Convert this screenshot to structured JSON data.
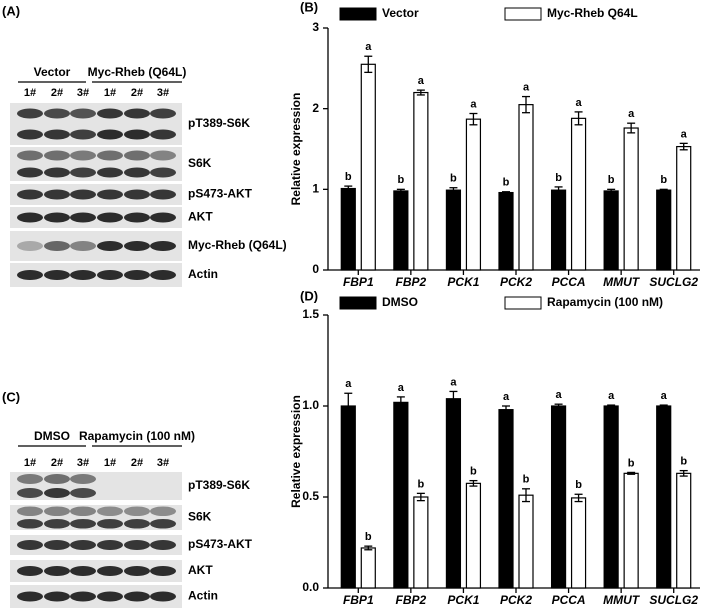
{
  "chart_data": [
    {
      "type": "bar",
      "panel_label": "(B)",
      "y_label": "Relative expression",
      "categories": [
        "FBP1",
        "FBP2",
        "PCK1",
        "PCK2",
        "PCCA",
        "MMUT",
        "SUCLG2"
      ],
      "series": [
        {
          "name": "Vector",
          "color": "#000000",
          "values": [
            1.01,
            0.98,
            0.99,
            0.96,
            0.99,
            0.98,
            0.99
          ],
          "errors": [
            0.03,
            0.02,
            0.03,
            0.01,
            0.04,
            0.02,
            0.01
          ],
          "letters": [
            "b",
            "b",
            "b",
            "b",
            "b",
            "b",
            "b"
          ]
        },
        {
          "name": "Myc-Rheb Q64L",
          "color": "#ffffff",
          "values": [
            2.55,
            2.2,
            1.87,
            2.05,
            1.88,
            1.76,
            1.53
          ],
          "errors": [
            0.1,
            0.03,
            0.07,
            0.1,
            0.08,
            0.06,
            0.04
          ],
          "letters": [
            "a",
            "a",
            "a",
            "a",
            "a",
            "a",
            "a"
          ]
        }
      ],
      "ylim": [
        0,
        3
      ],
      "yticks": [
        0,
        1,
        2,
        3
      ]
    },
    {
      "type": "bar",
      "panel_label": "(D)",
      "y_label": "Relative expression",
      "categories": [
        "FBP1",
        "FBP2",
        "PCK1",
        "PCK2",
        "PCCA",
        "MMUT",
        "SUCLG2"
      ],
      "series": [
        {
          "name": "DMSO",
          "color": "#000000",
          "values": [
            1.0,
            1.02,
            1.04,
            0.98,
            1.0,
            1.0,
            1.0
          ],
          "errors": [
            0.07,
            0.03,
            0.04,
            0.02,
            0.01,
            0.005,
            0.005
          ],
          "letters": [
            "a",
            "a",
            "a",
            "a",
            "a",
            "a",
            "a"
          ]
        },
        {
          "name": "Rapamycin (100 nM)",
          "color": "#ffffff",
          "values": [
            0.22,
            0.5,
            0.575,
            0.51,
            0.495,
            0.63,
            0.63
          ],
          "errors": [
            0.01,
            0.02,
            0.015,
            0.035,
            0.02,
            0.005,
            0.015
          ],
          "letters": [
            "b",
            "b",
            "b",
            "b",
            "b",
            "b",
            "b"
          ]
        }
      ],
      "ylim": [
        0,
        1.5
      ],
      "yticks": [
        {
          "value": 0,
          "label": "0.0"
        },
        {
          "value": 0.5,
          "label": "0.5"
        },
        {
          "value": 1,
          "label": "1.0"
        },
        {
          "value": 1.5,
          "label": "1.5"
        }
      ]
    }
  ],
  "blots": [
    {
      "panel_label": "(A)",
      "groups": [
        "Vector",
        "Myc-Rheb (Q64L)"
      ],
      "lanes": [
        "1#",
        "2#",
        "3#",
        "1#",
        "2#",
        "3#"
      ],
      "rows": [
        "pT389-S6K",
        "S6K",
        "pS473-AKT",
        "AKT",
        "Myc-Rheb (Q64L)",
        "Actin"
      ]
    },
    {
      "panel_label": "(C)",
      "groups": [
        "DMSO",
        "Rapamycin (100 nM)"
      ],
      "lanes": [
        "1#",
        "2#",
        "3#",
        "1#",
        "2#",
        "3#"
      ],
      "rows": [
        "pT389-S6K",
        "S6K",
        "pS473-AKT",
        "AKT",
        "Actin"
      ]
    }
  ]
}
